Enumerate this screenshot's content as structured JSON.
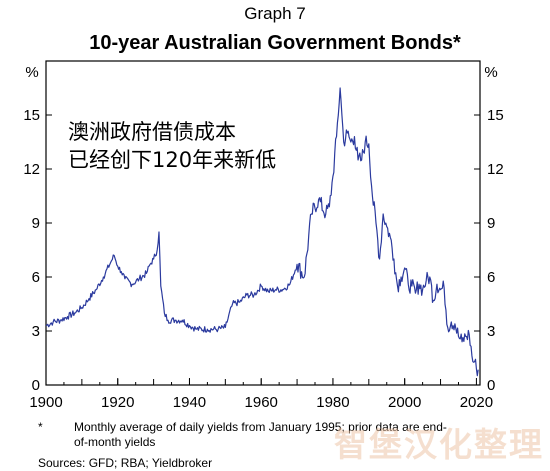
{
  "header": {
    "graph_label": "Graph 7"
  },
  "annotation": {
    "line1": "澳洲政府借债成本",
    "line2": "已经创下120年来新低"
  },
  "footnote": {
    "mark": "*",
    "text": "Monthly average of daily yields from January 1995; prior data are end-of-month yields"
  },
  "sources": "Sources:  GFD; RBA; Yieldbroker",
  "watermark": "智堡汉化整理",
  "colors": {
    "series": "#2b3a9e",
    "watermark": "#ecc4a8"
  },
  "chart_data": {
    "type": "line",
    "title": "10-year Australian Government Bonds*",
    "xlabel": "",
    "ylabel": "",
    "y_unit_left": "%",
    "y_unit_right": "%",
    "xlim": [
      1900,
      2021
    ],
    "ylim": [
      0,
      18
    ],
    "x_ticks": [
      1900,
      1920,
      1940,
      1960,
      1980,
      2000,
      2020
    ],
    "y_ticks": [
      0,
      3,
      6,
      9,
      12,
      15
    ],
    "grid": false,
    "legend": "none",
    "series": [
      {
        "x": [
          1900,
          1902,
          1904,
          1906,
          1908,
          1910,
          1912,
          1914,
          1916,
          1918,
          1919,
          1920,
          1921,
          1922,
          1924,
          1926,
          1928,
          1929,
          1930,
          1931,
          1931.5,
          1932,
          1933,
          1934,
          1936,
          1938,
          1940,
          1942,
          1945,
          1948,
          1950,
          1952,
          1954,
          1956,
          1958,
          1960,
          1962,
          1964,
          1966,
          1968,
          1970,
          1972,
          1974,
          1976,
          1978,
          1979,
          1980,
          1981,
          1982,
          1982.5,
          1983,
          1984,
          1985,
          1986,
          1987,
          1988,
          1989,
          1990,
          1991,
          1992,
          1993,
          1994,
          1995,
          1996,
          1997,
          1998,
          1999,
          2000,
          2001,
          2002,
          2003,
          2004,
          2005,
          2006,
          2007,
          2008,
          2009,
          2010,
          2011,
          2012,
          2013,
          2014,
          2015,
          2016,
          2017,
          2018,
          2019,
          2019.5,
          2020,
          2020.5
        ],
        "values": [
          3.3,
          3.5,
          3.6,
          3.8,
          4.0,
          4.3,
          4.8,
          5.3,
          6.0,
          6.8,
          7.2,
          6.6,
          6.3,
          5.9,
          5.6,
          5.9,
          6.2,
          6.7,
          7.0,
          7.5,
          8.5,
          5.5,
          4.0,
          3.6,
          3.6,
          3.6,
          3.3,
          3.1,
          3.1,
          3.1,
          3.2,
          4.5,
          4.6,
          5.0,
          5.0,
          5.5,
          5.2,
          5.3,
          5.3,
          5.6,
          6.7,
          6.0,
          9.5,
          10.3,
          9.5,
          9.9,
          11.6,
          13.8,
          16.5,
          15.0,
          13.5,
          14.0,
          13.5,
          13.8,
          12.5,
          12.5,
          13.5,
          13.4,
          10.5,
          9.0,
          7.0,
          9.5,
          8.8,
          8.2,
          7.0,
          5.5,
          6.0,
          6.5,
          5.6,
          5.5,
          5.1,
          5.6,
          5.3,
          5.8,
          6.0,
          4.7,
          5.6,
          5.3,
          5.4,
          3.2,
          3.5,
          3.4,
          2.7,
          2.4,
          2.7,
          2.8,
          1.3,
          1.3,
          0.9,
          0.85
        ]
      }
    ]
  }
}
